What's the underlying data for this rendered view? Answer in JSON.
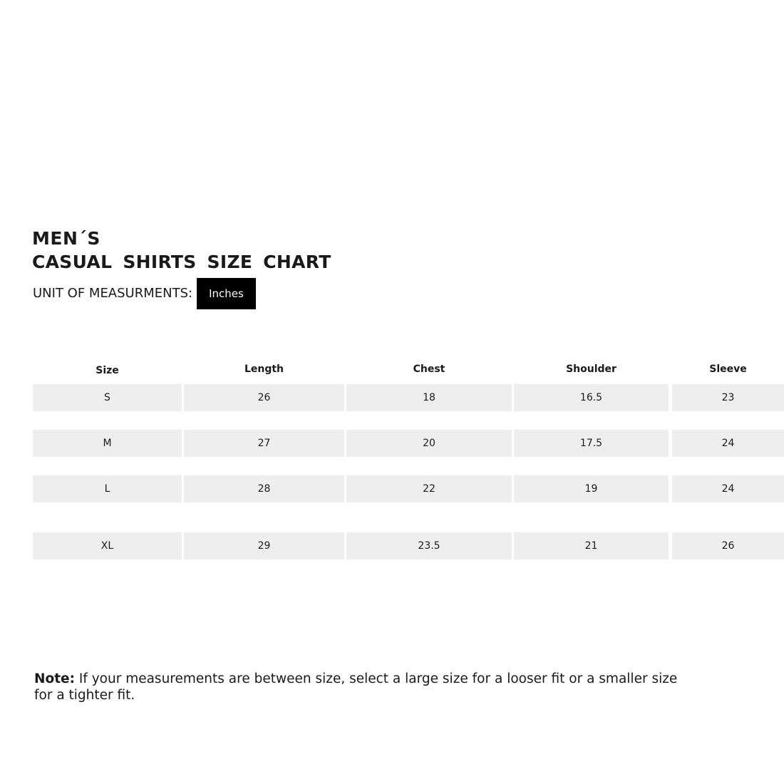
{
  "title": {
    "line1": "MEN´S",
    "line2": "CASUAL  SHIRTS  SIZE  CHART"
  },
  "unit": {
    "label": "UNIT OF MEASURMENTS:",
    "value": "Inches"
  },
  "table": {
    "headers": [
      "Size",
      "Length",
      "Chest",
      "Shoulder",
      "Sleeve"
    ],
    "rows": [
      [
        "S",
        "26",
        "18",
        "16.5",
        "23"
      ],
      [
        "M",
        "27",
        "20",
        "17.5",
        "24"
      ],
      [
        "L",
        "28",
        "22",
        "19",
        "24"
      ],
      [
        "XL",
        "29",
        "23.5",
        "21",
        "26"
      ]
    ]
  },
  "note": {
    "label": "Note:",
    "text": " If your measurements are between size, select a large size for a looser fit or a smaller size for a tighter fit."
  },
  "colors": {
    "cell_bg": "#eeeeee",
    "badge_bg": "#000000"
  }
}
